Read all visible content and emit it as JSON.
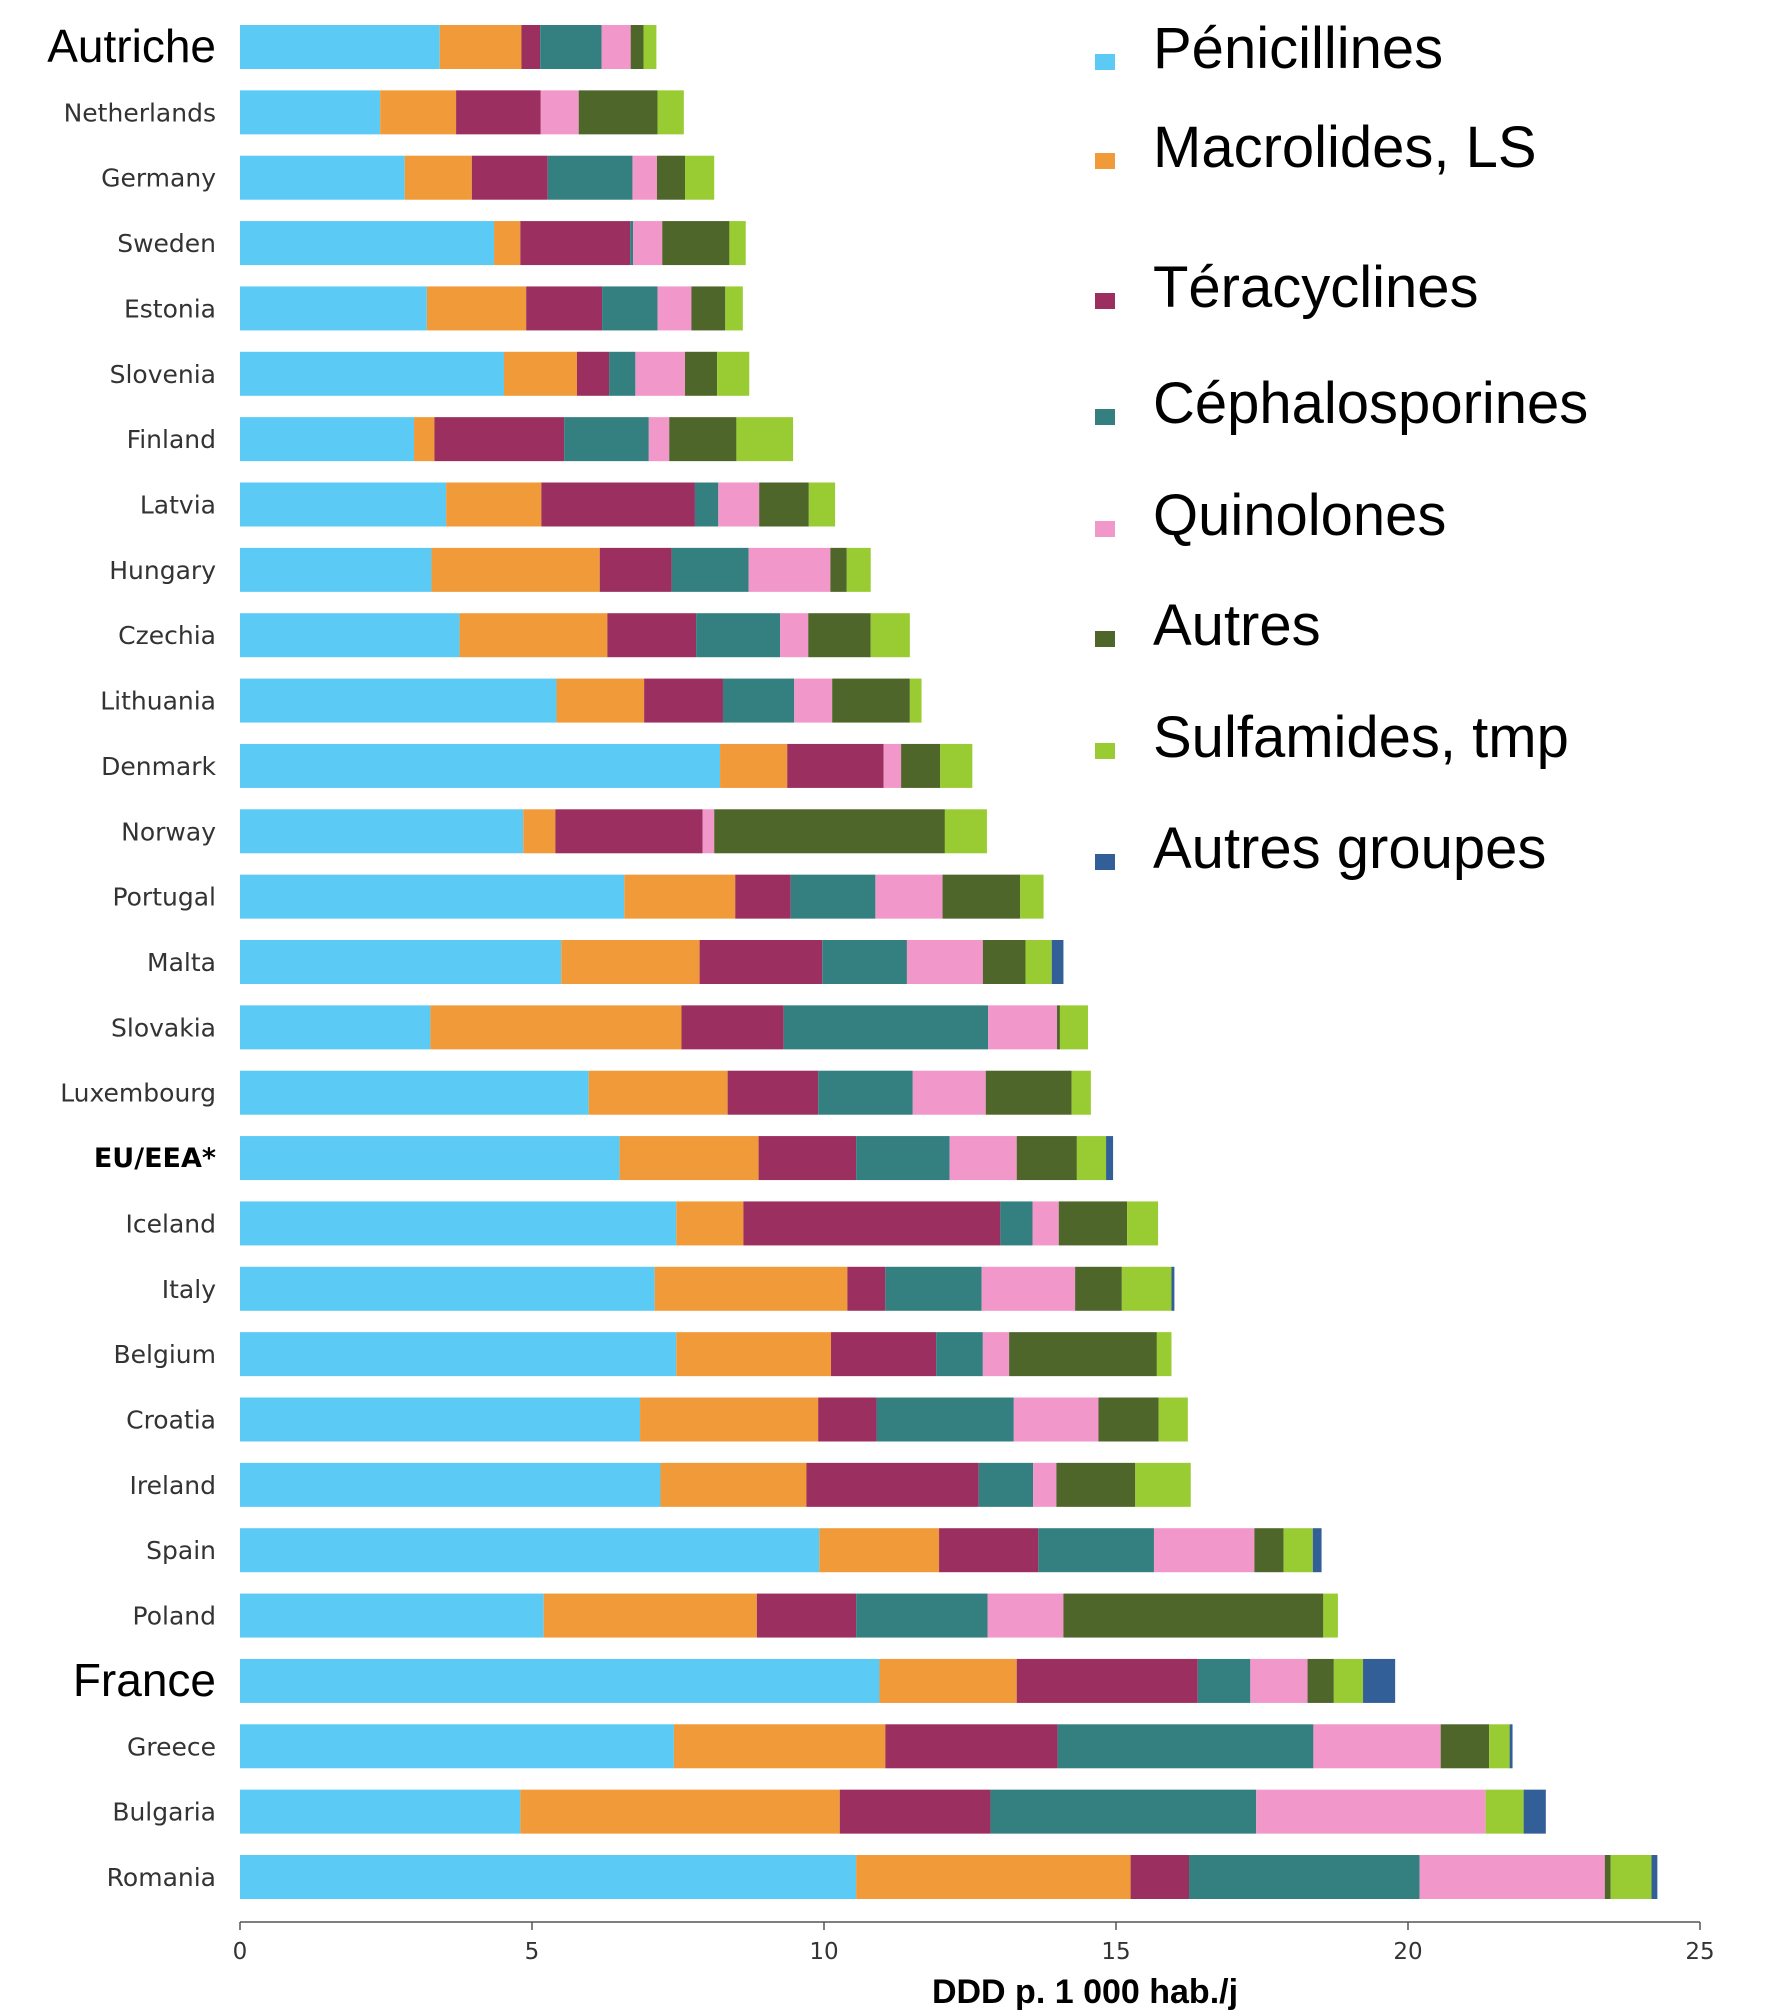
{
  "chart_data": {
    "type": "bar",
    "orientation": "horizontal",
    "stacked": true,
    "xlabel": "DDD p. 1 000 hab./j",
    "xlim": [
      0,
      25
    ],
    "xticks": [
      "0",
      "5",
      "10",
      "15",
      "20",
      "25"
    ],
    "legend_position": "top-right",
    "grid": false,
    "categories": [
      "Autriche",
      "Netherlands",
      "Germany",
      "Sweden",
      "Estonia",
      "Slovenia",
      "Finland",
      "Latvia",
      "Hungary",
      "Czechia",
      "Lithuania",
      "Denmark",
      "Norway",
      "Portugal",
      "Malta",
      "Slovakia",
      "Luxembourg",
      "EU/EEA*",
      "Iceland",
      "Italy",
      "Belgium",
      "Croatia",
      "Ireland",
      "Spain",
      "Poland",
      "France",
      "Greece",
      "Bulgaria",
      "Romania"
    ],
    "category_styles": [
      "big",
      "normal",
      "normal",
      "normal",
      "normal",
      "normal",
      "normal",
      "normal",
      "normal",
      "normal",
      "normal",
      "normal",
      "normal",
      "normal",
      "normal",
      "normal",
      "normal",
      "bold",
      "normal",
      "normal",
      "normal",
      "normal",
      "normal",
      "normal",
      "normal",
      "big",
      "normal",
      "normal",
      "normal"
    ],
    "series": [
      {
        "name": "Pénicillines",
        "color": "#5bcbf5",
        "values": [
          3.42,
          2.4,
          2.82,
          4.35,
          3.2,
          4.52,
          2.98,
          3.53,
          3.28,
          3.76,
          5.42,
          8.22,
          4.85,
          6.58,
          5.5,
          3.26,
          5.97,
          6.5,
          7.47,
          7.1,
          7.47,
          6.85,
          7.2,
          9.92,
          5.2,
          10.95,
          7.43,
          4.8,
          10.55
        ]
      },
      {
        "name": "Macrolides, LS",
        "color": "#f09a3a",
        "values": [
          1.4,
          1.3,
          1.15,
          0.45,
          1.7,
          1.25,
          0.35,
          1.63,
          2.88,
          2.53,
          1.5,
          1.15,
          0.55,
          1.9,
          2.37,
          4.3,
          2.38,
          2.38,
          1.15,
          3.3,
          2.65,
          3.05,
          2.5,
          2.05,
          3.65,
          2.35,
          3.62,
          5.47,
          4.7
        ]
      },
      {
        "name": "Téracyclines",
        "color": "#9b3060",
        "values": [
          0.32,
          1.45,
          1.3,
          1.88,
          1.3,
          0.55,
          2.22,
          2.63,
          1.23,
          1.52,
          1.35,
          1.65,
          2.52,
          0.95,
          2.1,
          1.75,
          1.55,
          1.67,
          4.4,
          0.65,
          1.8,
          1.0,
          2.95,
          1.7,
          1.7,
          3.1,
          2.95,
          2.58,
          1.0
        ]
      },
      {
        "name": "Céphalosporines",
        "color": "#348080",
        "values": [
          1.05,
          0.0,
          1.45,
          0.05,
          0.95,
          0.45,
          1.45,
          0.4,
          1.32,
          1.44,
          1.22,
          0.0,
          0.0,
          1.45,
          1.45,
          3.5,
          1.62,
          1.6,
          0.55,
          1.65,
          0.8,
          2.35,
          0.93,
          1.98,
          2.25,
          0.9,
          4.38,
          4.55,
          3.95
        ]
      },
      {
        "name": "Quinolones",
        "color": "#f197c9",
        "values": [
          0.5,
          0.65,
          0.42,
          0.5,
          0.58,
          0.85,
          0.35,
          0.7,
          1.4,
          0.48,
          0.65,
          0.3,
          0.2,
          1.15,
          1.3,
          1.18,
          1.25,
          1.15,
          0.45,
          1.6,
          0.45,
          1.45,
          0.4,
          1.72,
          1.3,
          0.98,
          2.18,
          3.93,
          3.17
        ]
      },
      {
        "name": "Autres",
        "color": "#4e6629",
        "values": [
          0.22,
          1.35,
          0.48,
          1.15,
          0.58,
          0.55,
          1.15,
          0.85,
          0.28,
          1.07,
          1.33,
          0.67,
          3.95,
          1.33,
          0.73,
          0.05,
          1.47,
          1.03,
          1.17,
          0.8,
          2.53,
          1.03,
          1.35,
          0.5,
          4.45,
          0.45,
          0.83,
          0.0,
          0.1
        ]
      },
      {
        "name": "Sulfamides, tmp",
        "color": "#99cc33",
        "values": [
          0.22,
          0.45,
          0.5,
          0.28,
          0.3,
          0.55,
          0.97,
          0.45,
          0.41,
          0.67,
          0.2,
          0.55,
          0.72,
          0.4,
          0.45,
          0.48,
          0.33,
          0.5,
          0.53,
          0.85,
          0.25,
          0.5,
          0.95,
          0.5,
          0.25,
          0.5,
          0.35,
          0.65,
          0.7
        ]
      },
      {
        "name": "Autres groupes",
        "color": "#335f99",
        "values": [
          0,
          0,
          0,
          0,
          0,
          0,
          0,
          0,
          0,
          0,
          0,
          0,
          0,
          0,
          0.2,
          0,
          0,
          0.12,
          0,
          0.05,
          0,
          0,
          0,
          0.15,
          0,
          0.55,
          0.05,
          0.38,
          0.1
        ]
      }
    ]
  }
}
